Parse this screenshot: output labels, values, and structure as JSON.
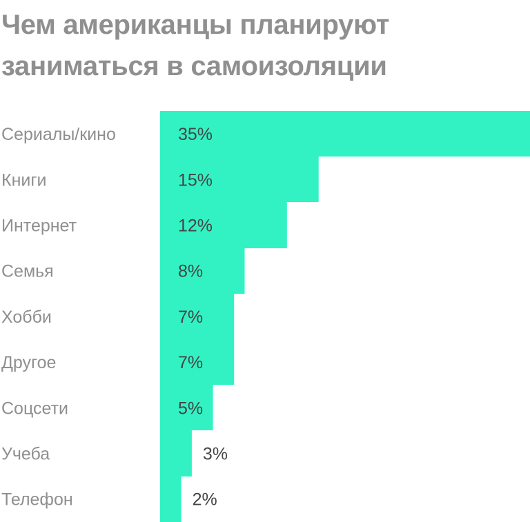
{
  "chart_data": {
    "type": "bar",
    "orientation": "horizontal",
    "title_lines": [
      "Чем американцы планируют",
      "заниматься в самоизоляции"
    ],
    "xlabel": "",
    "ylabel": "",
    "categories": [
      "Сериалы/кино",
      "Книги",
      "Интернет",
      "Семья",
      "Хобби",
      "Другое",
      "Соцсети",
      "Учеба",
      "Телефон"
    ],
    "values": [
      35,
      15,
      12,
      8,
      7,
      7,
      5,
      3,
      2
    ],
    "value_labels": [
      "35%",
      "15%",
      "12%",
      "8%",
      "7%",
      "7%",
      "5%",
      "3%",
      "2%"
    ],
    "xlim": [
      0,
      35
    ],
    "grid": false,
    "legend": "none",
    "colors": {
      "bar": "#32f2c4",
      "title": "#8f8f8f",
      "category_label": "#8f8f8f",
      "value_label": "#444444"
    }
  }
}
